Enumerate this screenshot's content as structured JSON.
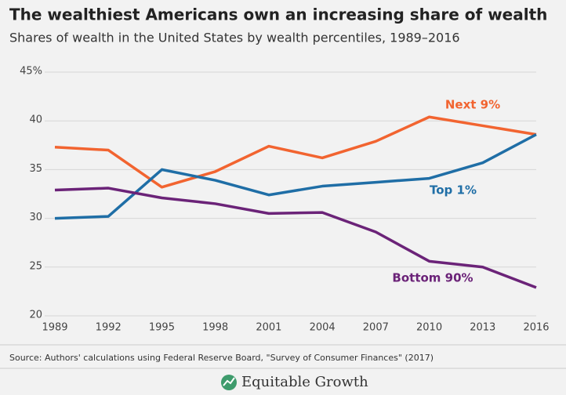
{
  "chart_data": {
    "type": "line",
    "title": "The wealthiest Americans own an increasing share of wealth",
    "subtitle": "Shares of wealth in the United States by wealth percentiles, 1989–2016",
    "x": [
      1989,
      1992,
      1995,
      1998,
      2001,
      2004,
      2007,
      2010,
      2013,
      2016
    ],
    "xlim": [
      1989,
      2016
    ],
    "xticks": [
      1989,
      1992,
      1995,
      1998,
      2001,
      2004,
      2007,
      2010,
      2013,
      2016
    ],
    "ylim": [
      20,
      45
    ],
    "yticks": [
      20,
      25,
      30,
      35,
      40,
      {
        "value": 45,
        "label": "45%"
      }
    ],
    "grid": true,
    "series": [
      {
        "name": "Next 9%",
        "color": "#f26430",
        "values": [
          37.3,
          37.0,
          33.2,
          34.8,
          37.4,
          36.2,
          37.9,
          40.4,
          39.5,
          38.6
        ]
      },
      {
        "name": "Top 1%",
        "color": "#1f6ea6",
        "values": [
          30.0,
          30.2,
          35.0,
          33.9,
          32.4,
          33.3,
          33.7,
          34.1,
          35.7,
          38.6
        ]
      },
      {
        "name": "Bottom 90%",
        "color": "#6b2378",
        "values": [
          32.9,
          33.1,
          32.1,
          31.5,
          30.5,
          30.6,
          28.6,
          25.6,
          25.0,
          22.9
        ]
      }
    ],
    "source": "Source: Authors' calculations using Federal Reserve Board, \"Survey of Consumer Finances\" (2017)"
  },
  "footer": {
    "brand": "Equitable Growth"
  }
}
